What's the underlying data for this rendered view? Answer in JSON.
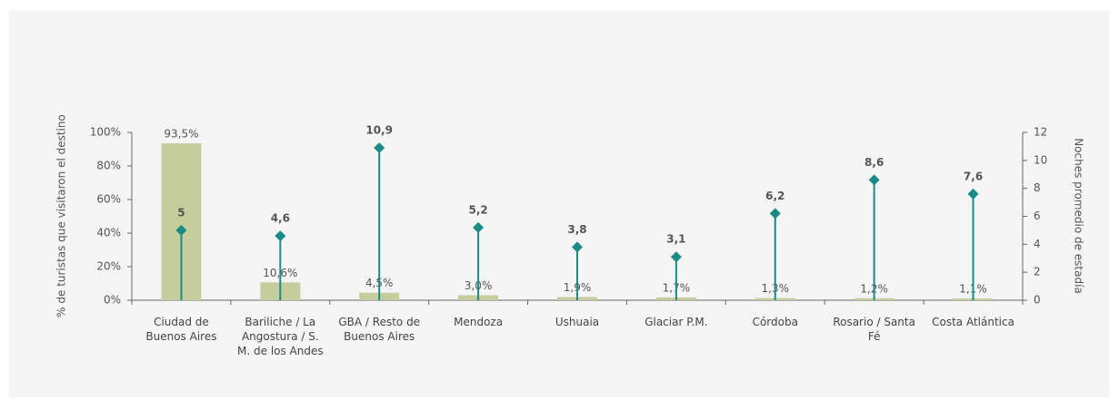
{
  "chart_data": {
    "type": "bar",
    "ylabel": "% de turistas que visitaron el destino",
    "y2label": "Noches promedio de estadía",
    "categories": [
      "Ciudad de Buenos Aires",
      "Bariliche / La Angostura / S. M. de los Andes",
      "GBA / Resto de Buenos Aires",
      "Mendoza",
      "Ushuaia",
      "Glaciar P.M.",
      "Córdoba",
      "Rosario / Santa Fé",
      "Costa Atlántica"
    ],
    "series": [
      {
        "type": "bar",
        "color": "#c6cd9c",
        "values": [
          93.5,
          10.6,
          4.5,
          3.0,
          1.9,
          1.7,
          1.3,
          1.2,
          1.1
        ],
        "value_labels": [
          "93,5%",
          "10,6%",
          "4,5%",
          "3,0%",
          "1,9%",
          "1,7%",
          "1,3%",
          "1,2%",
          "1,1%"
        ]
      },
      {
        "type": "lollipop",
        "axis": "y2",
        "color": "#1a8b87",
        "values": [
          5,
          4.6,
          10.9,
          5.2,
          3.8,
          3.1,
          6.2,
          8.6,
          7.6
        ],
        "value_labels": [
          "5",
          "4,6",
          "10,9",
          "5,2",
          "3,8",
          "3,1",
          "6,2",
          "8,6",
          "7,6"
        ]
      }
    ],
    "ylim": [
      0,
      100
    ],
    "yticks": [
      {
        "value": 0,
        "label": "0%"
      },
      {
        "value": 20,
        "label": "20%"
      },
      {
        "value": 40,
        "label": "40%"
      },
      {
        "value": 60,
        "label": "60%"
      },
      {
        "value": 80,
        "label": "80%"
      },
      {
        "value": 100,
        "label": "100%"
      }
    ],
    "y2lim": [
      0,
      12
    ],
    "y2ticks": [
      0,
      2,
      4,
      6,
      8,
      10,
      12
    ]
  }
}
